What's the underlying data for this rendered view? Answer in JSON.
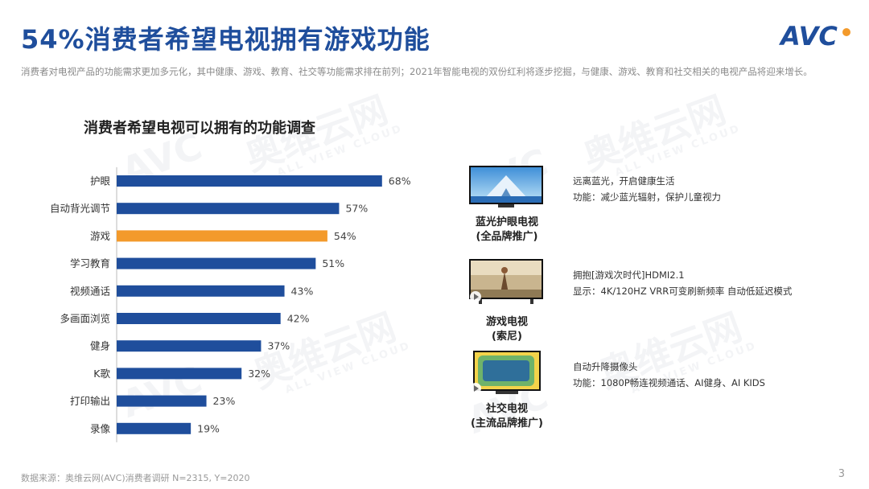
{
  "header": {
    "title": "54%消费者希望电视拥有游戏功能",
    "logo_text": "AVC",
    "subtitle": "消费者对电视产品的功能需求更加多元化，其中健康、游戏、教育、社交等功能需求排在前列；2021年智能电视的双份红利将逐步挖掘，与健康、游戏、教育和社交相关的电视产品将迎来增长。"
  },
  "watermark": {
    "cn": "奥维云网",
    "en": "ALL VIEW CLOUD"
  },
  "chart_data": {
    "type": "bar",
    "orientation": "horizontal",
    "title": "消费者希望电视可以拥有的功能调查",
    "categories": [
      "护眼",
      "自动背光调节",
      "游戏",
      "学习教育",
      "视频通话",
      "多画面浏览",
      "健身",
      "K歌",
      "打印输出",
      "录像"
    ],
    "values": [
      68,
      57,
      54,
      51,
      43,
      42,
      37,
      32,
      23,
      19
    ],
    "value_labels": [
      "68%",
      "57%",
      "54%",
      "51%",
      "43%",
      "42%",
      "37%",
      "32%",
      "23%",
      "19%"
    ],
    "highlight_index": 2,
    "colors": {
      "default": "#1f4e9c",
      "highlight": "#f39a2b"
    },
    "xlim": [
      0,
      100
    ]
  },
  "features": [
    {
      "caption_line1": "蓝光护眼电视",
      "caption_line2": "(全品牌推广)",
      "line1": "远离蓝光，开启健康生活",
      "line2": "功能：减少蓝光辐射，保护儿童视力"
    },
    {
      "caption_line1": "游戏电视",
      "caption_line2": "(索尼)",
      "line1": "拥抱[游戏次时代]HDMI2.1",
      "line2": "显示：4K/120HZ   VRR可变刷新频率   自动低延迟模式"
    },
    {
      "caption_line1": "社交电视",
      "caption_line2": "(主流品牌推广)",
      "line1": "自动升降摄像头",
      "line2": "功能：1080P畅连视频通话、AI健身、AI KIDS"
    }
  ],
  "footer": {
    "source": "数据来源：奥维云网(AVC)消费者调研   N=2315, Y=2020",
    "page": "3"
  }
}
